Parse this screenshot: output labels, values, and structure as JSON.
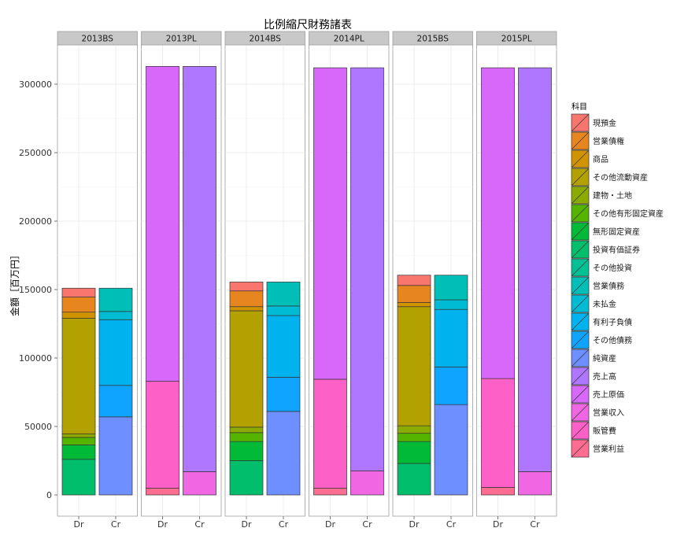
{
  "chart_data": {
    "type": "bar",
    "title": "比例縮尺財務諸表",
    "ylabel": "金額［百万円］",
    "xlabel": "",
    "ylim": [
      -15000,
      326000
    ],
    "yticks": [
      0,
      50000,
      100000,
      150000,
      200000,
      250000,
      300000
    ],
    "grid": true,
    "legend_position": "right",
    "legend_title": "科目",
    "legend": [
      {
        "name": "現預金",
        "color": "#F8766D"
      },
      {
        "name": "営業債権",
        "color": "#E7851E"
      },
      {
        "name": "商品",
        "color": "#D09400"
      },
      {
        "name": "その他流動資産",
        "color": "#B2A100"
      },
      {
        "name": "建物・土地",
        "color": "#8BAB00"
      },
      {
        "name": "その他有形固定資産",
        "color": "#55B400"
      },
      {
        "name": "無形固定資産",
        "color": "#00BA38"
      },
      {
        "name": "投資有価証券",
        "color": "#00BE6C"
      },
      {
        "name": "その他投資",
        "color": "#00C094"
      },
      {
        "name": "営業債務",
        "color": "#00BFB6"
      },
      {
        "name": "未払金",
        "color": "#00BBD4"
      },
      {
        "name": "有利子負債",
        "color": "#00B2EE"
      },
      {
        "name": "その他債務",
        "color": "#0EA4FF"
      },
      {
        "name": "純資産",
        "color": "#6E8FFF"
      },
      {
        "name": "売上高",
        "color": "#AF76FF"
      },
      {
        "name": "売上原価",
        "color": "#D768F9"
      },
      {
        "name": "営業収入",
        "color": "#F067E3"
      },
      {
        "name": "販管費",
        "color": "#FD61C7"
      },
      {
        "name": "営業利益",
        "color": "#FF6C91"
      }
    ],
    "facets": [
      {
        "label": "2013BS",
        "categories": [
          "Dr",
          "Cr"
        ],
        "bars": [
          {
            "category": "Dr",
            "segments": [
              {
                "item": "投資有価証券",
                "value": 26000
              },
              {
                "item": "無形固定資産",
                "value": 10500
              },
              {
                "item": "その他有形固定資産",
                "value": 5500
              },
              {
                "item": "建物・土地",
                "value": 2500
              },
              {
                "item": "その他流動資産",
                "value": 84500
              },
              {
                "item": "商品",
                "value": 4500
              },
              {
                "item": "営業債権",
                "value": 11000
              },
              {
                "item": "現預金",
                "value": 6500
              }
            ]
          },
          {
            "category": "Cr",
            "segments": [
              {
                "item": "純資産",
                "value": 57000
              },
              {
                "item": "その他債務",
                "value": 23000
              },
              {
                "item": "有利子負債",
                "value": 48000
              },
              {
                "item": "未払金",
                "value": 6000
              },
              {
                "item": "営業債務",
                "value": 17000
              }
            ]
          }
        ]
      },
      {
        "label": "2013PL",
        "categories": [
          "Dr",
          "Cr"
        ],
        "bars": [
          {
            "category": "Dr",
            "segments": [
              {
                "item": "営業利益",
                "value": 5000
              },
              {
                "item": "販管費",
                "value": 78000
              },
              {
                "item": "売上原価",
                "value": 230000
              }
            ]
          },
          {
            "category": "Cr",
            "segments": [
              {
                "item": "営業収入",
                "value": 17000
              },
              {
                "item": "売上高",
                "value": 296000
              }
            ]
          }
        ]
      },
      {
        "label": "2014BS",
        "categories": [
          "Dr",
          "Cr"
        ],
        "bars": [
          {
            "category": "Dr",
            "segments": [
              {
                "item": "投資有価証券",
                "value": 25000
              },
              {
                "item": "無形固定資産",
                "value": 14000
              },
              {
                "item": "その他有形固定資産",
                "value": 6500
              },
              {
                "item": "建物・土地",
                "value": 4000
              },
              {
                "item": "その他流動資産",
                "value": 85000
              },
              {
                "item": "商品",
                "value": 3000
              },
              {
                "item": "営業債権",
                "value": 11500
              },
              {
                "item": "現預金",
                "value": 6500
              }
            ]
          },
          {
            "category": "Cr",
            "segments": [
              {
                "item": "純資産",
                "value": 61000
              },
              {
                "item": "その他債務",
                "value": 25000
              },
              {
                "item": "有利子負債",
                "value": 45000
              },
              {
                "item": "未払金",
                "value": 7000
              },
              {
                "item": "営業債務",
                "value": 17500
              }
            ]
          }
        ]
      },
      {
        "label": "2014PL",
        "categories": [
          "Dr",
          "Cr"
        ],
        "bars": [
          {
            "category": "Dr",
            "segments": [
              {
                "item": "営業利益",
                "value": 5000
              },
              {
                "item": "販管費",
                "value": 79500
              },
              {
                "item": "売上原価",
                "value": 227500
              }
            ]
          },
          {
            "category": "Cr",
            "segments": [
              {
                "item": "営業収入",
                "value": 17500
              },
              {
                "item": "売上高",
                "value": 294500
              }
            ]
          }
        ]
      },
      {
        "label": "2015BS",
        "categories": [
          "Dr",
          "Cr"
        ],
        "bars": [
          {
            "category": "Dr",
            "segments": [
              {
                "item": "投資有価証券",
                "value": 23000
              },
              {
                "item": "無形固定資産",
                "value": 16000
              },
              {
                "item": "その他有形固定資産",
                "value": 6000
              },
              {
                "item": "建物・土地",
                "value": 5500
              },
              {
                "item": "その他流動資産",
                "value": 87000
              },
              {
                "item": "商品",
                "value": 3000
              },
              {
                "item": "営業債権",
                "value": 12500
              },
              {
                "item": "現預金",
                "value": 7500
              }
            ]
          },
          {
            "category": "Cr",
            "segments": [
              {
                "item": "純資産",
                "value": 66000
              },
              {
                "item": "その他債務",
                "value": 27500
              },
              {
                "item": "有利子負債",
                "value": 42000
              },
              {
                "item": "未払金",
                "value": 7000
              },
              {
                "item": "営業債務",
                "value": 18000
              }
            ]
          }
        ]
      },
      {
        "label": "2015PL",
        "categories": [
          "Dr",
          "Cr"
        ],
        "bars": [
          {
            "category": "Dr",
            "segments": [
              {
                "item": "営業利益",
                "value": 5500
              },
              {
                "item": "販管費",
                "value": 79500
              },
              {
                "item": "売上原価",
                "value": 227000
              }
            ]
          },
          {
            "category": "Cr",
            "segments": [
              {
                "item": "営業収入",
                "value": 17000
              },
              {
                "item": "売上高",
                "value": 295000
              }
            ]
          }
        ]
      }
    ]
  }
}
